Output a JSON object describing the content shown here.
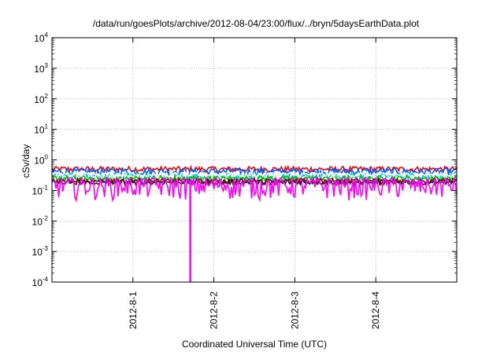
{
  "chart_data": {
    "type": "line",
    "title": "/data/run/goesPlots/archive/2012-08-04/23:00/flux/../bryn/5daysEarthData.plot",
    "xlabel": "Coordinated Universal Time (UTC)",
    "ylabel": "cSv/day",
    "yscale": "log",
    "ylim": [
      0.0001,
      10000
    ],
    "xlim": [
      "2012-07-31",
      "2012-08-05"
    ],
    "grid": true,
    "yticks": [
      {
        "value": 0.0001,
        "base": "10",
        "exp": "-4"
      },
      {
        "value": 0.001,
        "base": "10",
        "exp": "-3"
      },
      {
        "value": 0.01,
        "base": "10",
        "exp": "-2"
      },
      {
        "value": 0.1,
        "base": "10",
        "exp": "-1"
      },
      {
        "value": 1,
        "base": "10",
        "exp": "0"
      },
      {
        "value": 10,
        "base": "10",
        "exp": "1"
      },
      {
        "value": 100,
        "base": "10",
        "exp": "2"
      },
      {
        "value": 1000,
        "base": "10",
        "exp": "3"
      },
      {
        "value": 10000,
        "base": "10",
        "exp": "4"
      }
    ],
    "xticks": [
      "2012-8-1",
      "2012-8-2",
      "2012-8-3",
      "2012-8-4"
    ],
    "xtick_dates": [
      "2012-08-01",
      "2012-08-02",
      "2012-08-03",
      "2012-08-04"
    ],
    "series": [
      {
        "color": "#ff0000",
        "level": 0.5,
        "jitter": 0.12
      },
      {
        "color": "#0060ff",
        "level": 0.42,
        "jitter": 0.12
      },
      {
        "color": "#00d0d0",
        "level": 0.3,
        "jitter": 0.08
      },
      {
        "color": "#00c000",
        "level": 0.25,
        "jitter": 0.06
      },
      {
        "color": "#ffffff",
        "level": 0.33,
        "jitter": 0.07
      },
      {
        "color": "#8b0000",
        "level": 0.2,
        "jitter": 0.05
      },
      {
        "color": "#202020",
        "level": 0.19,
        "jitter": 0.04
      },
      {
        "color": "#ff00ff",
        "level": 0.155,
        "jitter": 0.12
      }
    ],
    "spike": {
      "series_color": "#ff00ff",
      "date": "2012-08-01T17:00",
      "value": 0.0001
    }
  }
}
